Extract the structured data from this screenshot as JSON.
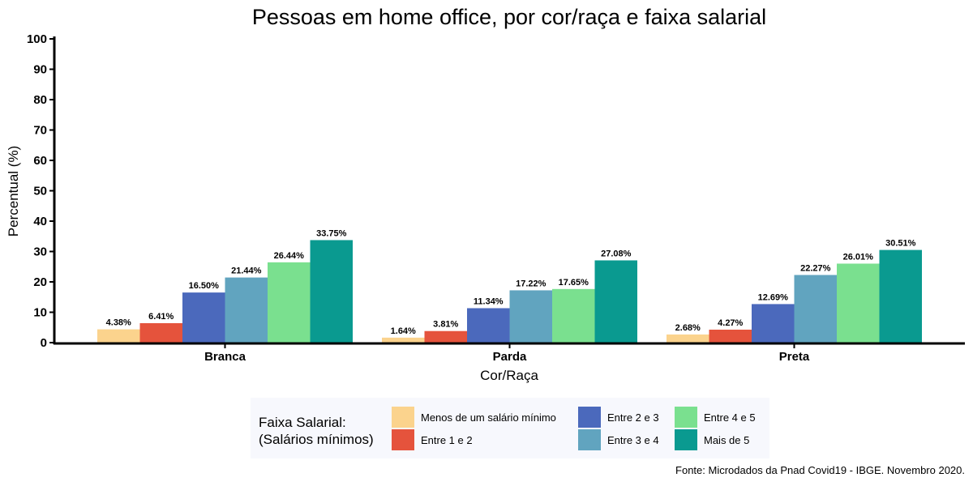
{
  "chart_data": {
    "type": "bar",
    "title": "Pessoas em home office, por cor/raça e faixa salarial",
    "xlabel": "Cor/Raça",
    "ylabel": "Percentual (%)",
    "ylim": [
      0,
      100
    ],
    "yticks": [
      "0",
      "10",
      "20",
      "30",
      "40",
      "50",
      "60",
      "70",
      "80",
      "90",
      "100"
    ],
    "categories": [
      "Branca",
      "Parda",
      "Preta"
    ],
    "series": [
      {
        "name": "Menos de um salário mínimo",
        "color": "#fbd38d",
        "values": [
          4.38,
          1.64,
          2.68
        ],
        "labels": [
          "4.38%",
          "1.64%",
          "2.68%"
        ]
      },
      {
        "name": "Entre 1 e 2",
        "color": "#e5533c",
        "values": [
          6.41,
          3.81,
          4.27
        ],
        "labels": [
          "6.41%",
          "3.81%",
          "4.27%"
        ]
      },
      {
        "name": "Entre 2 e 3",
        "color": "#4b69bc",
        "values": [
          16.5,
          11.34,
          12.69
        ],
        "labels": [
          "16.50%",
          "11.34%",
          "12.69%"
        ]
      },
      {
        "name": "Entre 3 e 4",
        "color": "#61a4bf",
        "values": [
          21.44,
          17.22,
          22.27
        ],
        "labels": [
          "21.44%",
          "17.22%",
          "22.27%"
        ]
      },
      {
        "name": "Entre 4 e 5",
        "color": "#7ae08f",
        "values": [
          26.44,
          17.65,
          26.01
        ],
        "labels": [
          "26.44%",
          "17.65%",
          "26.01%"
        ]
      },
      {
        "name": "Mais de 5",
        "color": "#0a9a90",
        "values": [
          33.75,
          27.08,
          30.51
        ],
        "labels": [
          "33.75%",
          "27.08%",
          "30.51%"
        ]
      }
    ],
    "legend": {
      "title": "Faixa Salarial:\n(Salários mínimos)",
      "position": "bottom"
    }
  },
  "source": "Fonte: Microdados da Pnad Covid19 - IBGE. Novembro 2020."
}
